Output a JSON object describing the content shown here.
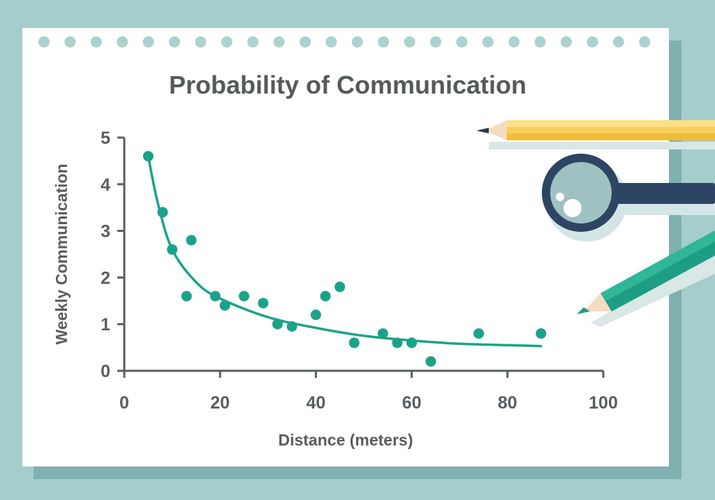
{
  "chart_data": {
    "type": "scatter",
    "title": "Probability of Communication",
    "xlabel": "Distance (meters)",
    "ylabel": "Weekly Communication",
    "xlim": [
      0,
      100
    ],
    "ylim": [
      0,
      5
    ],
    "x_ticks": [
      "0",
      "20",
      "40",
      "60",
      "80",
      "100"
    ],
    "y_ticks": [
      "0",
      "1",
      "2",
      "3",
      "4",
      "5"
    ],
    "points": [
      {
        "x": 5,
        "y": 4.6
      },
      {
        "x": 8,
        "y": 3.4
      },
      {
        "x": 10,
        "y": 2.6
      },
      {
        "x": 13,
        "y": 1.6
      },
      {
        "x": 14,
        "y": 2.8
      },
      {
        "x": 19,
        "y": 1.6
      },
      {
        "x": 21,
        "y": 1.4
      },
      {
        "x": 25,
        "y": 1.6
      },
      {
        "x": 29,
        "y": 1.45
      },
      {
        "x": 32,
        "y": 1.0
      },
      {
        "x": 35,
        "y": 0.95
      },
      {
        "x": 40,
        "y": 1.2
      },
      {
        "x": 42,
        "y": 1.6
      },
      {
        "x": 45,
        "y": 1.8
      },
      {
        "x": 48,
        "y": 0.6
      },
      {
        "x": 54,
        "y": 0.8
      },
      {
        "x": 57,
        "y": 0.6
      },
      {
        "x": 60,
        "y": 0.6
      },
      {
        "x": 64,
        "y": 0.2
      },
      {
        "x": 74,
        "y": 0.8
      },
      {
        "x": 87,
        "y": 0.8
      }
    ],
    "trend_curve": [
      {
        "x": 5,
        "y": 4.6
      },
      {
        "x": 7,
        "y": 3.6
      },
      {
        "x": 10,
        "y": 2.6
      },
      {
        "x": 15,
        "y": 1.9
      },
      {
        "x": 20,
        "y": 1.55
      },
      {
        "x": 30,
        "y": 1.15
      },
      {
        "x": 40,
        "y": 0.92
      },
      {
        "x": 50,
        "y": 0.75
      },
      {
        "x": 60,
        "y": 0.65
      },
      {
        "x": 70,
        "y": 0.58
      },
      {
        "x": 80,
        "y": 0.55
      },
      {
        "x": 87,
        "y": 0.53
      }
    ],
    "grid": false,
    "colors": {
      "points": "#1aa388",
      "curve": "#1aa388",
      "axis": "#595e61"
    }
  },
  "decor": {
    "background": "#a4cdcc",
    "paper": "#ffffff",
    "binding_dots": "#a9d2d0",
    "icons": [
      "pencil-icon",
      "magnifying-glass-icon",
      "green-pencil-icon"
    ]
  }
}
